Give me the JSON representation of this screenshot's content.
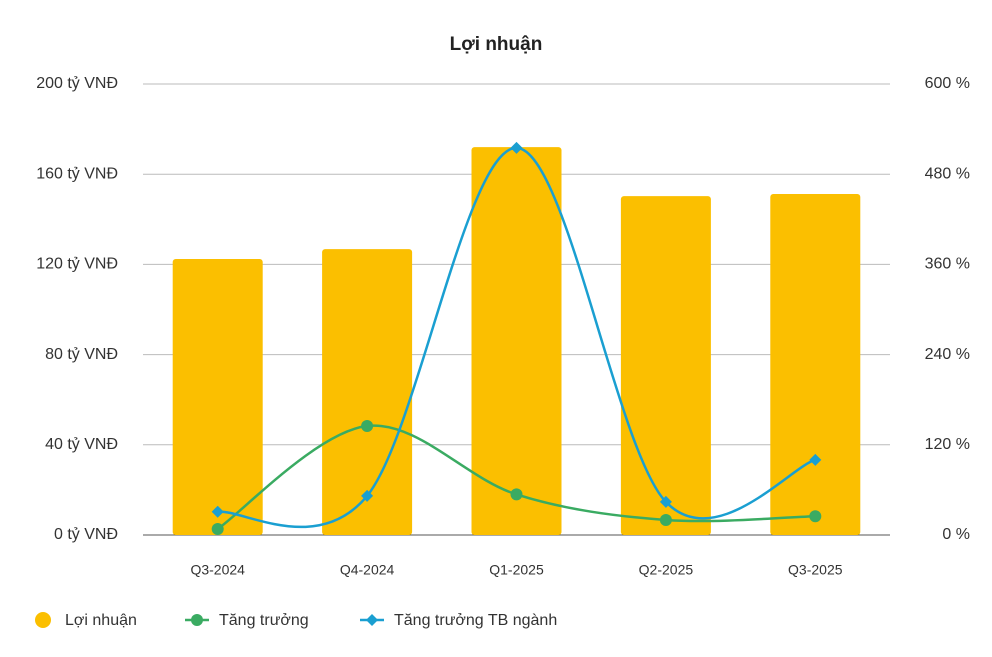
{
  "chart_data": {
    "type": "bar-line",
    "title": "Lợi nhuận",
    "categories": [
      "Q3-2024",
      "Q4-2024",
      "Q1-2025",
      "Q2-2025",
      "Q3-2025"
    ],
    "series": [
      {
        "name": "Lợi nhuận",
        "type": "bar",
        "color": "#fbbf00",
        "values": [
          122.4,
          126.8,
          172,
          150.3,
          151.2
        ]
      },
      {
        "name": "Tăng trưởng",
        "type": "line",
        "axis": "y2",
        "marker": "circle",
        "color": "#3aab62",
        "values": [
          8,
          145,
          54,
          20,
          25
        ]
      },
      {
        "name": "Tăng trưởng TB ngành",
        "type": "line",
        "axis": "y2",
        "marker": "diamond",
        "color": "#1a9fd1",
        "values": [
          31,
          52,
          515,
          44,
          100
        ]
      }
    ],
    "ylim": [
      0,
      200
    ],
    "yticks": [
      {
        "value": 0,
        "label": "0 tỷ VNĐ"
      },
      {
        "value": 40,
        "label": "40 tỷ VNĐ"
      },
      {
        "value": 80,
        "label": "80 tỷ VNĐ"
      },
      {
        "value": 120,
        "label": "120 tỷ VNĐ"
      },
      {
        "value": 160,
        "label": "160 tỷ VNĐ"
      },
      {
        "value": 200,
        "label": "200 tỷ VNĐ"
      }
    ],
    "y2lim": [
      0,
      600
    ],
    "y2ticks": [
      {
        "value": 0,
        "label": "0 %"
      },
      {
        "value": 120,
        "label": "120 %"
      },
      {
        "value": 240,
        "label": "240 %"
      },
      {
        "value": 360,
        "label": "360 %"
      },
      {
        "value": 480,
        "label": "480 %"
      },
      {
        "value": 600,
        "label": "600 %"
      }
    ],
    "grid": true,
    "legend": "bottom"
  }
}
